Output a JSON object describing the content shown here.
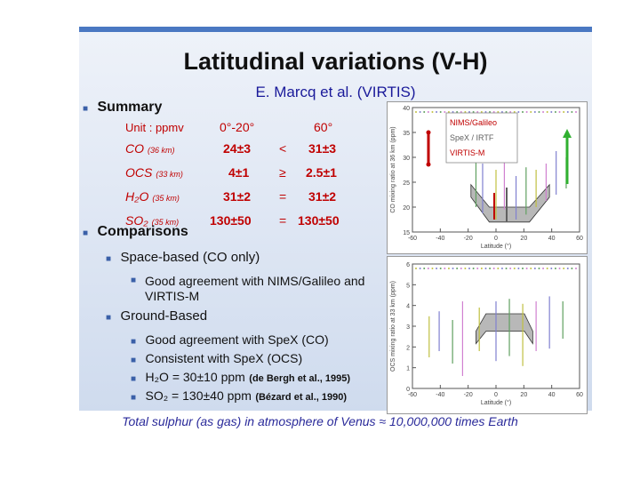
{
  "slide": {
    "title": "Latitudinal variations (V-H)",
    "subtitle": "E. Marcq et al. (VIRTIS)",
    "summary_heading": "Summary",
    "table": {
      "unit_label": "Unit : ppmv",
      "col1": "0°-20°",
      "col2": "60°",
      "rows": [
        {
          "mol": "CO",
          "alt": "(36 km)",
          "v1": "24±3",
          "rel": "<",
          "v2": "31±3"
        },
        {
          "mol": "OCS",
          "alt": "(33 km)",
          "v1": "4±1",
          "rel": "≥",
          "v2": "2.5±1"
        },
        {
          "mol": "H₂O",
          "alt": "(35 km)",
          "v1": "31±2",
          "rel": "=",
          "v2": "31±2"
        },
        {
          "mol": "SO₂",
          "alt": "(35 km)",
          "v1": "130±50",
          "rel": "=",
          "v2": "130±50"
        }
      ]
    },
    "comparisons_heading": "Comparisons",
    "space_heading": "Space-based (CO only)",
    "space_item": "Good agreement with NIMS/Galileo and VIRTIS-M",
    "ground_heading": "Ground-Based",
    "ground_items": [
      "Good agreement with SpeX (CO)",
      "Consistent with SpeX (OCS)"
    ],
    "h2o_line_main": "H₂O = 30±10 ppm",
    "h2o_line_ref": "(de Bergh et al., 1995)",
    "so2_line_main": "SO₂ = 130±40 ppm",
    "so2_line_ref": "(Bézard et al., 1990)"
  },
  "plot_top": {
    "ylabel": "CO mixing ratio at 36 km (ppm)",
    "xlabel": "Latitude (°)",
    "yticks": [
      "40",
      "35",
      "30",
      "25",
      "20",
      "15"
    ],
    "xticks": [
      "-60",
      "-40",
      "-20",
      "0",
      "20",
      "40",
      "60"
    ],
    "legend": [
      "NIMS/Galileo",
      "SpeX / IRTF",
      "VIRTIS-M"
    ],
    "legend_colors": [
      "#c00000",
      "#606060",
      "#c00000"
    ],
    "band_color": "#b8b8b8"
  },
  "plot_bottom": {
    "ylabel": "OCS mixing ratio at 33 km (ppm)",
    "xlabel": "Latitude (°)",
    "yticks": [
      "6",
      "5",
      "4",
      "3",
      "2",
      "1",
      "0"
    ],
    "xticks": [
      "-60",
      "-40",
      "-20",
      "0",
      "20",
      "40",
      "60"
    ],
    "band_color": "#b8b8b8"
  },
  "footer": "Total sulphur (as gas) in atmosphere of Venus ≈ 10,000,000 times Earth"
}
